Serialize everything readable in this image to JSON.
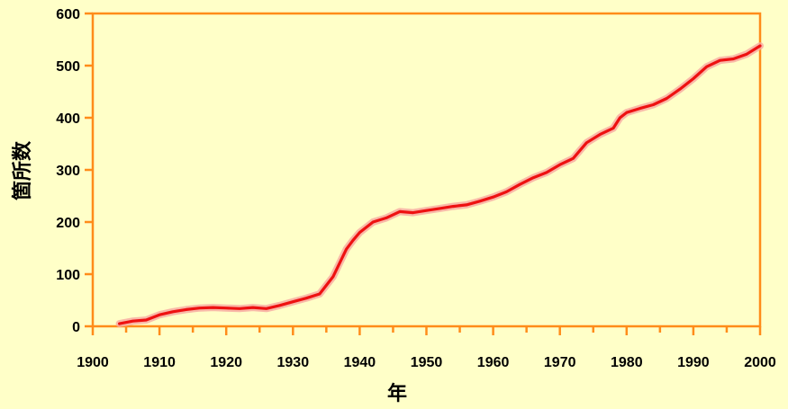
{
  "colors": {
    "background": "#ffffc8",
    "frame": "#ff8c1a",
    "line": "#ee1111",
    "line_glow": "#f7a8a0"
  },
  "chart_data": {
    "type": "line",
    "xlabel": "年",
    "ylabel": "箇所数",
    "xlim": [
      1900,
      2000
    ],
    "ylim": [
      0,
      600
    ],
    "x_ticks": [
      1900,
      1910,
      1920,
      1930,
      1940,
      1950,
      1960,
      1970,
      1980,
      1990,
      2000
    ],
    "y_ticks": [
      0,
      100,
      200,
      300,
      400,
      500,
      600
    ],
    "x_tick_labels": [
      "1900",
      "1910",
      "1920",
      "1930",
      "1940",
      "1950",
      "1960",
      "1970",
      "1980",
      "1990",
      "2000"
    ],
    "y_tick_labels": [
      "0",
      "100",
      "200",
      "300",
      "400",
      "500",
      "600"
    ],
    "grid": false,
    "series": [
      {
        "x": [
          1904,
          1906,
          1908,
          1910,
          1912,
          1914,
          1916,
          1918,
          1920,
          1922,
          1924,
          1926,
          1928,
          1930,
          1932,
          1934,
          1936,
          1938,
          1939,
          1940,
          1942,
          1944,
          1946,
          1948,
          1950,
          1952,
          1954,
          1956,
          1958,
          1960,
          1962,
          1964,
          1966,
          1968,
          1970,
          1972,
          1974,
          1976,
          1978,
          1979,
          1980,
          1982,
          1984,
          1986,
          1988,
          1990,
          1992,
          1994,
          1996,
          1998,
          2000
        ],
        "values": [
          5,
          10,
          12,
          22,
          28,
          32,
          35,
          36,
          35,
          34,
          36,
          34,
          40,
          47,
          54,
          62,
          95,
          148,
          165,
          180,
          200,
          208,
          220,
          218,
          222,
          226,
          230,
          233,
          240,
          248,
          258,
          272,
          285,
          295,
          310,
          322,
          352,
          368,
          380,
          400,
          410,
          418,
          425,
          437,
          455,
          475,
          498,
          510,
          513,
          522,
          538
        ]
      }
    ]
  }
}
